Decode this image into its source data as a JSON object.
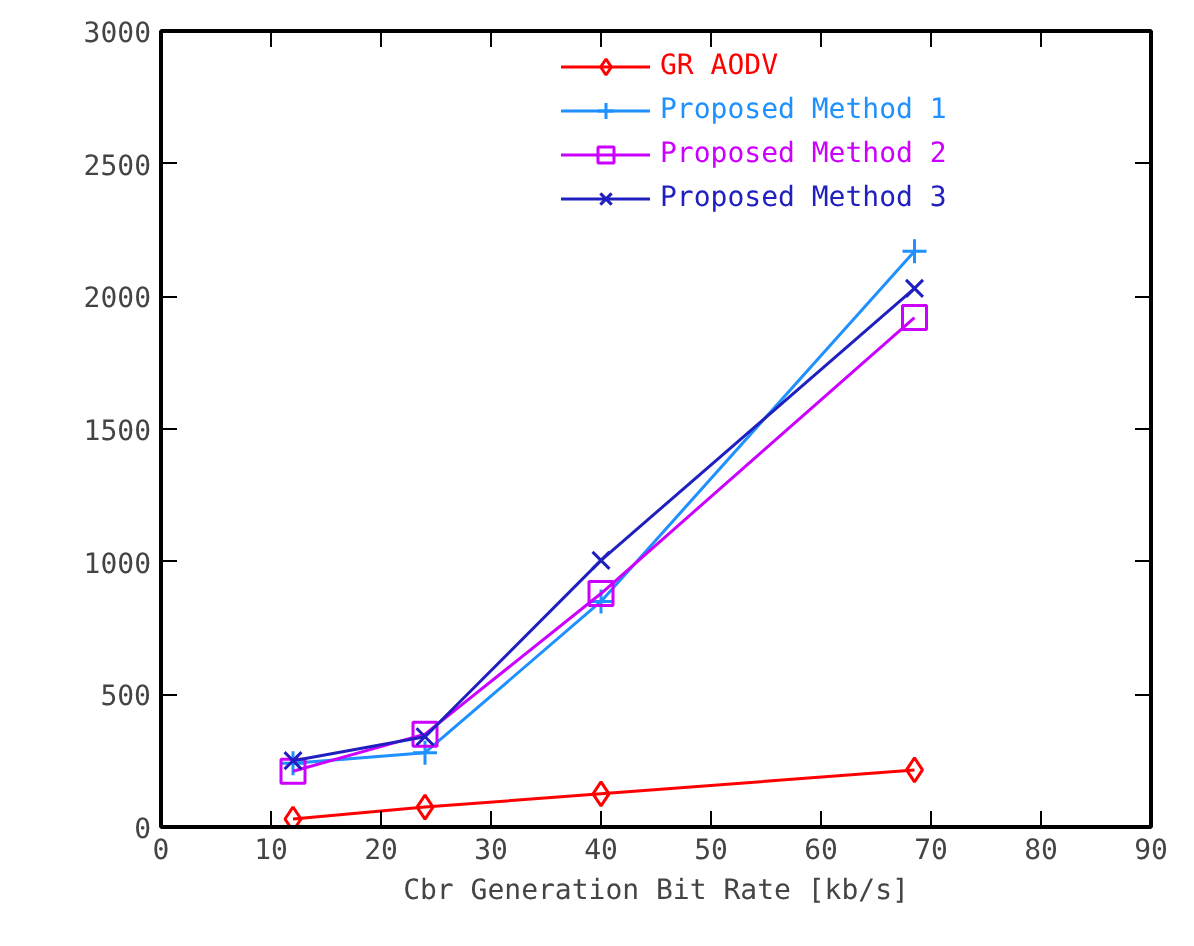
{
  "chart_data": {
    "type": "line",
    "xlabel": "Cbr Generation Bit Rate [kb/s]",
    "x": [
      12,
      24,
      40,
      68.5
    ],
    "series": [
      {
        "name": "GR AODV",
        "color": "#ff0000",
        "marker": "diamond",
        "values": [
          30,
          75,
          125,
          215
        ]
      },
      {
        "name": "Proposed Method 1",
        "color": "#1e90ff",
        "marker": "cross",
        "values": [
          240,
          280,
          850,
          2170
        ]
      },
      {
        "name": "Proposed Method 2",
        "color": "#cc00ff",
        "marker": "square",
        "values": [
          210,
          350,
          880,
          1920
        ]
      },
      {
        "name": "Proposed Method 3",
        "color": "#2020c0",
        "marker": "x",
        "values": [
          250,
          340,
          1005,
          2030
        ]
      }
    ],
    "xlim": [
      0,
      90
    ],
    "xticks": [
      0,
      10,
      20,
      30,
      40,
      50,
      60,
      70,
      80,
      90
    ],
    "ylim": [
      0,
      3000
    ],
    "yticks": [
      0,
      500,
      1000,
      1500,
      2000,
      2500,
      3000
    ],
    "grid": false,
    "legend": "top right"
  }
}
